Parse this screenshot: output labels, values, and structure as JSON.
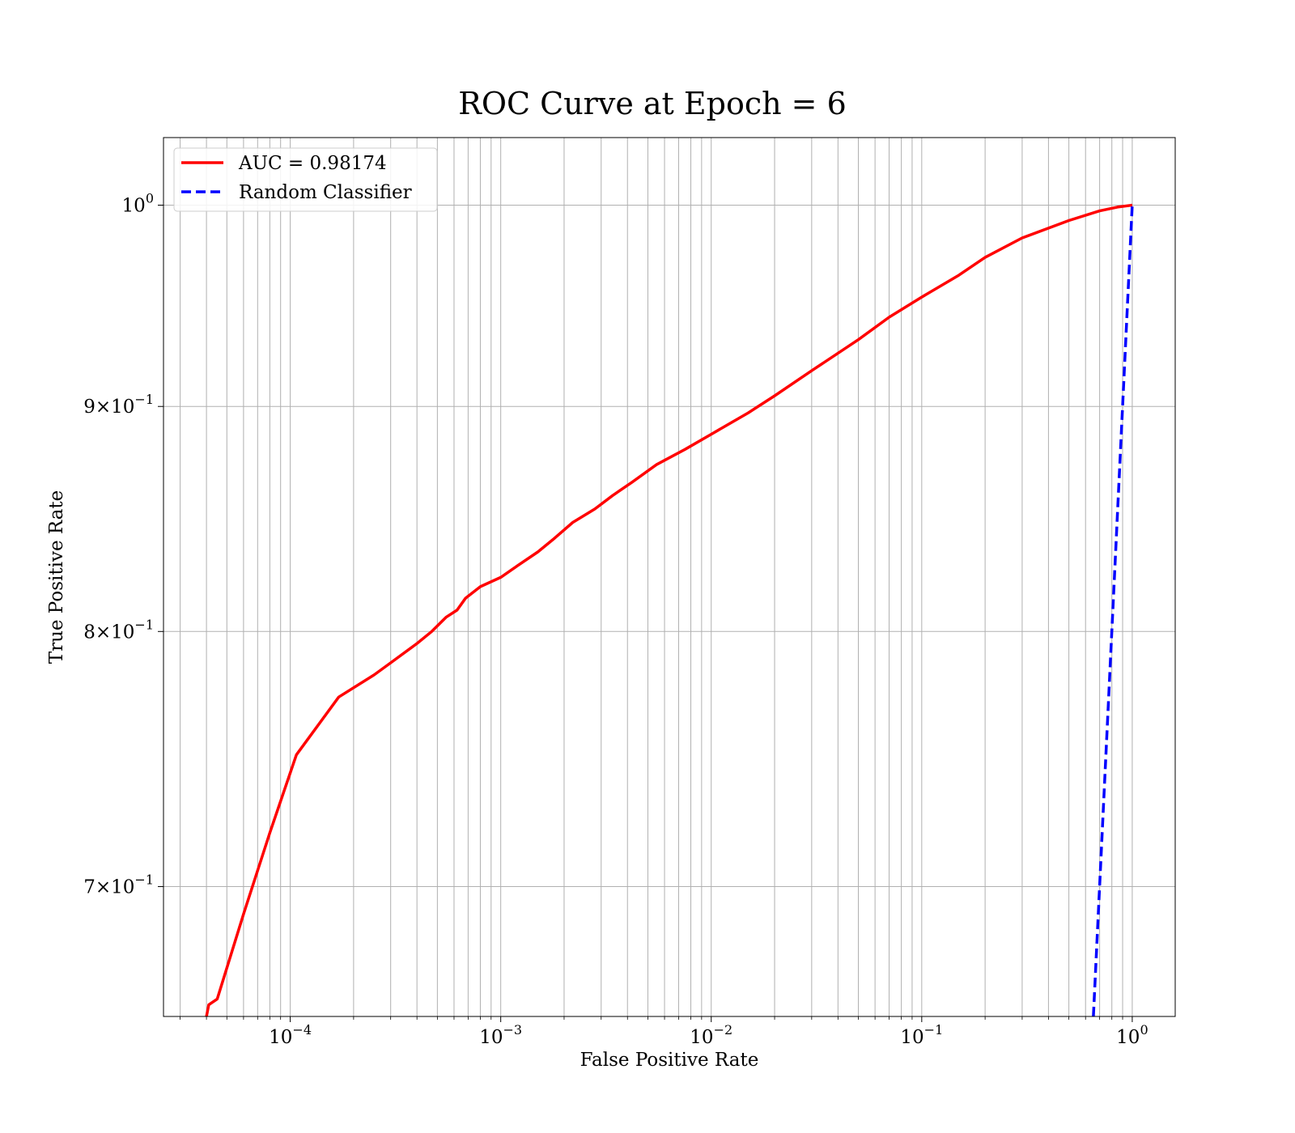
{
  "chart_data": {
    "type": "line",
    "title": "ROC Curve at Epoch = 6",
    "xlabel": "False Positive Rate",
    "ylabel": "True Positive Rate",
    "xscale": "log",
    "yscale": "log",
    "xlim": [
      2.5e-05,
      1.6
    ],
    "ylim": [
      0.654,
      1.036
    ],
    "grid": true,
    "grid_which": "both",
    "legend_placement": "top-left",
    "x_ticks": [
      {
        "base": "10",
        "exp": "−4",
        "value": 0.0001
      },
      {
        "base": "10",
        "exp": "−3",
        "value": 0.001
      },
      {
        "base": "10",
        "exp": "−2",
        "value": 0.01
      },
      {
        "base": "10",
        "exp": "−1",
        "value": 0.1
      },
      {
        "base": "10",
        "exp": "0",
        "value": 1
      }
    ],
    "y_ticks": [
      {
        "mant": "",
        "base": "10",
        "exp": "0",
        "value": 1.0
      },
      {
        "mant": "9×",
        "base": "10",
        "exp": "−1",
        "value": 0.9
      },
      {
        "mant": "8×",
        "base": "10",
        "exp": "−1",
        "value": 0.8
      },
      {
        "mant": "7×",
        "base": "10",
        "exp": "−1",
        "value": 0.7
      }
    ],
    "series": [
      {
        "name": "AUC = 0.98174",
        "color": "#ff0000",
        "style": "solid",
        "x": [
          4e-05,
          4.1e-05,
          4.5e-05,
          6e-05,
          8e-05,
          0.000107,
          0.00017,
          0.00025,
          0.0003,
          0.0004,
          0.00047,
          0.00055,
          0.00062,
          0.00068,
          0.0008,
          0.001,
          0.0012,
          0.0015,
          0.0018,
          0.0022,
          0.0028,
          0.0034,
          0.0042,
          0.0055,
          0.0075,
          0.01,
          0.015,
          0.02,
          0.03,
          0.05,
          0.07,
          0.1,
          0.15,
          0.2,
          0.3,
          0.5,
          0.7,
          0.85,
          1.0
        ],
        "y": [
          0.654,
          0.658,
          0.66,
          0.69,
          0.72,
          0.75,
          0.773,
          0.782,
          0.787,
          0.795,
          0.8,
          0.806,
          0.809,
          0.814,
          0.819,
          0.823,
          0.828,
          0.834,
          0.84,
          0.847,
          0.853,
          0.859,
          0.865,
          0.873,
          0.88,
          0.887,
          0.897,
          0.905,
          0.917,
          0.932,
          0.943,
          0.953,
          0.964,
          0.973,
          0.983,
          0.992,
          0.997,
          0.999,
          1.0
        ]
      },
      {
        "name": "Random Classifier",
        "color": "#0000ff",
        "style": "dashed",
        "x": [
          0.654,
          1.0
        ],
        "y": [
          0.654,
          1.0
        ]
      }
    ]
  }
}
